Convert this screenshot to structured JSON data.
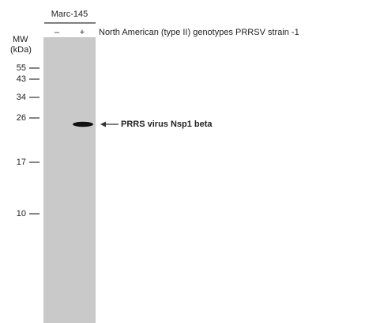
{
  "header": {
    "cell_line": "Marc-145",
    "lanes": [
      "–",
      "+"
    ],
    "sample": "North American (type II) genotypes PRRSV strain -1"
  },
  "mw_label": {
    "line1": "MW",
    "line2": "(kDa)"
  },
  "markers": [
    "55",
    "43",
    "34",
    "26",
    "17",
    "10"
  ],
  "band_label": "PRRS virus Nsp1 beta"
}
